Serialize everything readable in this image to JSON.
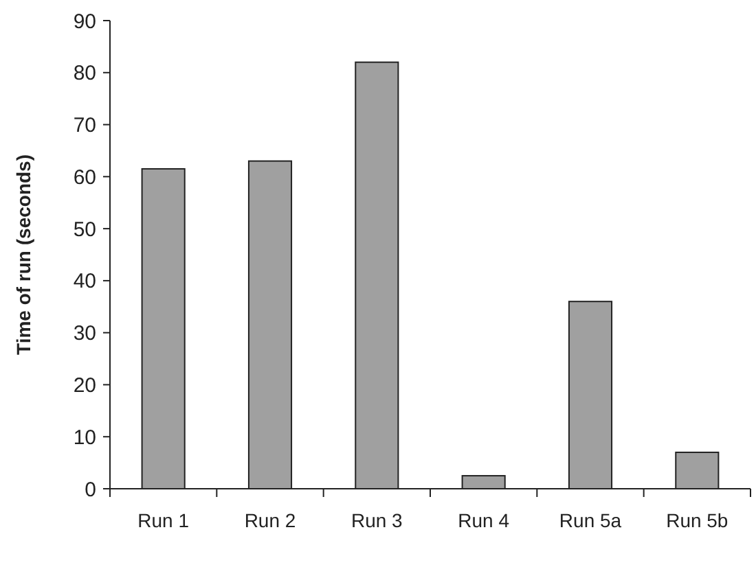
{
  "chart_data": {
    "type": "bar",
    "ylabel": "Time of run (seconds)",
    "categories": [
      "Run 1",
      "Run 2",
      "Run 3",
      "Run 4",
      "Run 5a",
      "Run 5b"
    ],
    "values": [
      61.5,
      63,
      82,
      2.5,
      36,
      7
    ],
    "color": "#a0a0a0",
    "ylim": [
      0,
      90
    ],
    "yticks": [
      0,
      10,
      20,
      30,
      40,
      50,
      60,
      70,
      80,
      90
    ],
    "grid": false
  }
}
